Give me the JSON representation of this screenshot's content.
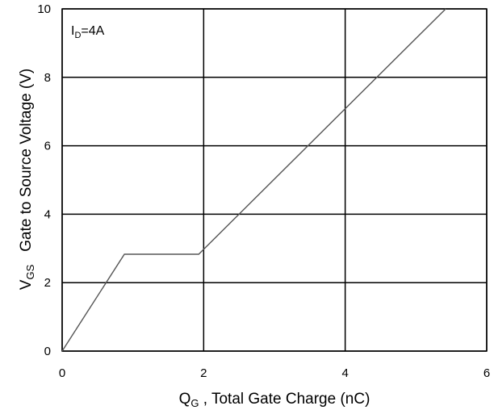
{
  "chart_data": {
    "type": "line",
    "title": "",
    "xlabel": {
      "main": "Q",
      "sub": "G",
      "rest": " , Total Gate Charge (nC)"
    },
    "ylabel": {
      "main": "V",
      "sub": "GS",
      "rest": "   Gate to Source Voltage (V)"
    },
    "xlim": [
      0,
      6
    ],
    "ylim": [
      0,
      10
    ],
    "xticks": [
      0,
      2,
      4,
      6
    ],
    "yticks": [
      0,
      2,
      4,
      6,
      8,
      10
    ],
    "x_tick_labels": [
      "0",
      "2",
      "4",
      "6"
    ],
    "y_tick_labels": [
      "0",
      "2",
      "4",
      "6",
      "8",
      "10"
    ],
    "grid": true,
    "annotation": {
      "main": "I",
      "sub": "D",
      "rest": "=4A"
    },
    "series": [
      {
        "x": [
          0,
          0.88,
          1.93,
          5.42
        ],
        "y": [
          0,
          2.83,
          2.83,
          10
        ]
      }
    ]
  },
  "colors": {
    "line": "#555555",
    "grid": "#000000",
    "frame": "#000000"
  }
}
